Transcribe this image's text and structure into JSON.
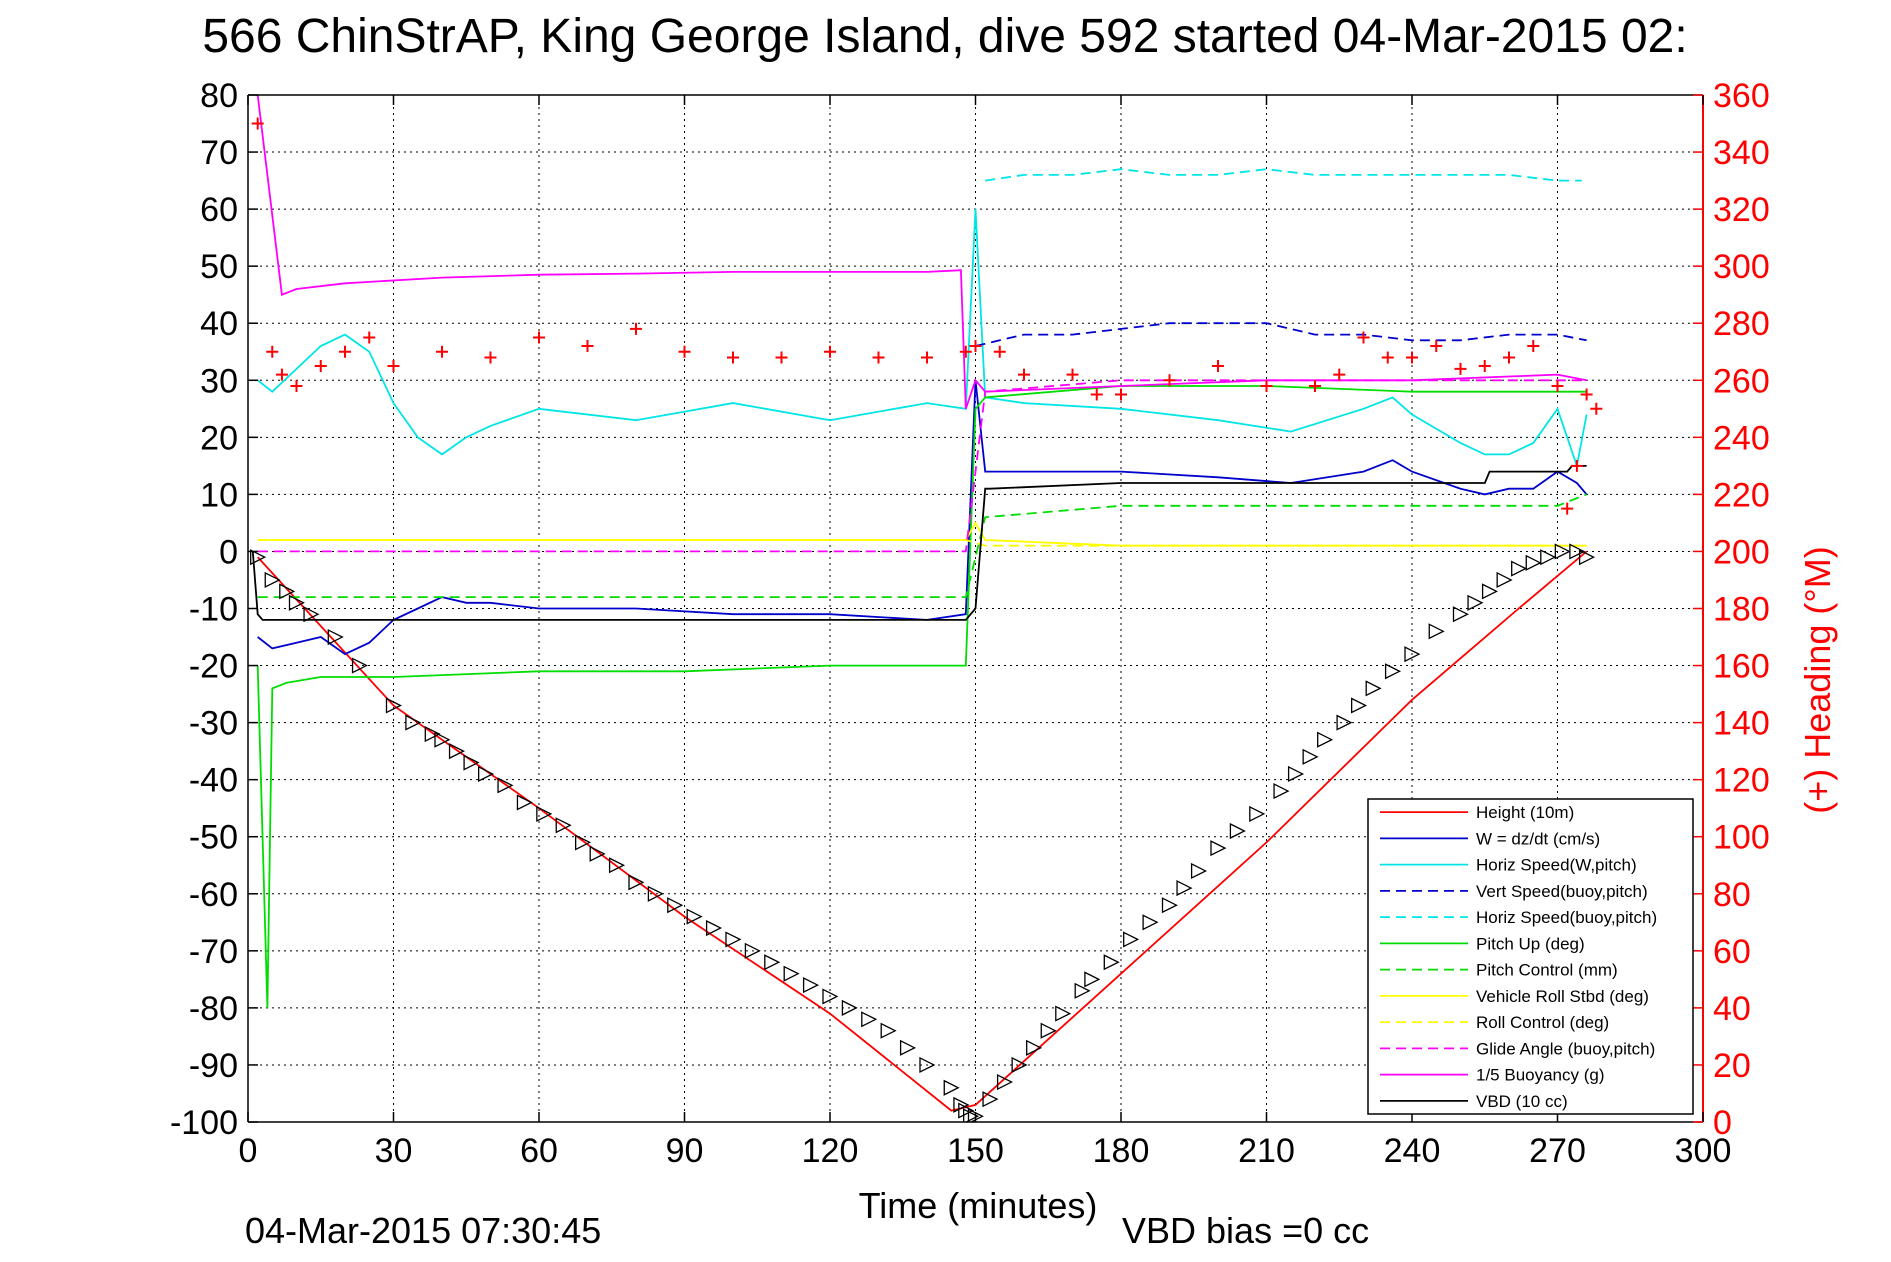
{
  "title": "566 ChinStrAP, King George Island, dive 592 started 04-Mar-2015 02:",
  "footer": {
    "timestamp": "04-Mar-2015 07:30:45",
    "vbd_bias": "VBD bias =0 cc"
  },
  "colors": {
    "height": "#ff0000",
    "w": "#0000cc",
    "horiz": "#00e5e5",
    "pitch": "#00dd00",
    "roll": "#ffff00",
    "glide": "#ff00ff",
    "buoy": "#ff00ff",
    "vbd": "#000000",
    "heading": "#ff0000"
  },
  "chart_data": {
    "type": "line",
    "title": "566 ChinStrAP, King George Island, dive 592 started 04-Mar-2015 02:",
    "xlabel": "Time (minutes)",
    "ylabel": "",
    "y2label": "(+) Heading (°M)",
    "xlim": [
      0,
      300
    ],
    "ylim": [
      -100,
      80
    ],
    "y2lim": [
      0,
      360
    ],
    "grid": true,
    "legend_position": "bottom-right",
    "x_ticks": [
      "0",
      "30",
      "60",
      "90",
      "120",
      "150",
      "180",
      "210",
      "240",
      "270",
      "300"
    ],
    "y_ticks": [
      "80",
      "70",
      "60",
      "50",
      "40",
      "30",
      "20",
      "10",
      "0",
      "-10",
      "-20",
      "-30",
      "-40",
      "-50",
      "-60",
      "-70",
      "-80",
      "-90",
      "-100"
    ],
    "y2_ticks": [
      "360",
      "340",
      "320",
      "300",
      "280",
      "260",
      "240",
      "220",
      "200",
      "180",
      "160",
      "140",
      "120",
      "100",
      "80",
      "60",
      "40",
      "20",
      "0"
    ],
    "series": [
      {
        "name": "Height (10m)",
        "style": "solid",
        "color": "#ff0000",
        "x": [
          2,
          30,
          60,
          90,
          120,
          145,
          150,
          180,
          210,
          240,
          262,
          276
        ],
        "y": [
          -1,
          -27,
          -45,
          -64,
          -81,
          -98,
          -97,
          -74,
          -51,
          -26,
          -10,
          0
        ]
      },
      {
        "name": "W = dz/dt (cm/s)",
        "style": "solid",
        "color": "#0000cc",
        "x": [
          2,
          5,
          10,
          15,
          20,
          25,
          30,
          35,
          40,
          45,
          50,
          60,
          80,
          100,
          120,
          140,
          148,
          150,
          152,
          160,
          180,
          200,
          215,
          230,
          236,
          240,
          250,
          255,
          260,
          265,
          270,
          274,
          276
        ],
        "y": [
          -15,
          -17,
          -16,
          -15,
          -18,
          -16,
          -12,
          -10,
          -8,
          -9,
          -9,
          -10,
          -10,
          -11,
          -11,
          -12,
          -11,
          30,
          14,
          14,
          14,
          13,
          12,
          14,
          16,
          14,
          11,
          10,
          11,
          11,
          14,
          12,
          10
        ]
      },
      {
        "name": "Horiz Speed(W,pitch)",
        "style": "solid",
        "color": "#00e5e5",
        "x": [
          2,
          5,
          10,
          15,
          20,
          25,
          30,
          35,
          40,
          45,
          50,
          60,
          80,
          100,
          120,
          140,
          148,
          150,
          152,
          160,
          180,
          200,
          215,
          230,
          236,
          240,
          250,
          255,
          260,
          265,
          270,
          274,
          276
        ],
        "y": [
          30,
          28,
          32,
          36,
          38,
          35,
          26,
          20,
          17,
          20,
          22,
          25,
          23,
          26,
          23,
          26,
          25,
          60,
          27,
          26,
          25,
          23,
          21,
          25,
          27,
          24,
          19,
          17,
          17,
          19,
          25,
          15,
          24
        ]
      },
      {
        "name": "Vert Speed(buoy,pitch)",
        "style": "dashed",
        "color": "#0000cc",
        "x": [
          150,
          160,
          170,
          180,
          190,
          200,
          210,
          220,
          230,
          240,
          250,
          260,
          270,
          276
        ],
        "y": [
          36,
          38,
          38,
          39,
          40,
          40,
          40,
          38,
          38,
          37,
          37,
          38,
          38,
          37
        ]
      },
      {
        "name": "Horiz Speed(buoy,pitch)",
        "style": "dashed",
        "color": "#00e5e5",
        "x": [
          152,
          160,
          170,
          180,
          190,
          200,
          210,
          220,
          230,
          240,
          250,
          260,
          270,
          275
        ],
        "y": [
          65,
          66,
          66,
          67,
          66,
          66,
          67,
          66,
          66,
          66,
          66,
          66,
          65,
          65
        ]
      },
      {
        "name": "Pitch Up (deg)",
        "style": "solid",
        "color": "#00dd00",
        "x": [
          2,
          4,
          5,
          8,
          15,
          30,
          60,
          90,
          120,
          148,
          150,
          152,
          180,
          210,
          240,
          270,
          276
        ],
        "y": [
          -20,
          -80,
          -24,
          -23,
          -22,
          -22,
          -21,
          -21,
          -20,
          -20,
          25,
          27,
          29,
          29,
          28,
          28,
          28
        ]
      },
      {
        "name": "Pitch Control (mm)",
        "style": "dashed",
        "color": "#00dd00",
        "x": [
          2,
          5,
          10,
          30,
          60,
          90,
          120,
          148,
          152,
          180,
          210,
          240,
          270,
          276
        ],
        "y": [
          -8,
          -8,
          -8,
          -8,
          -8,
          -8,
          -8,
          -8,
          6,
          8,
          8,
          8,
          8,
          10
        ]
      },
      {
        "name": "Vehicle Roll Stbd (deg)",
        "style": "solid",
        "color": "#ffff00",
        "x": [
          2,
          30,
          60,
          90,
          120,
          148,
          150,
          152,
          180,
          210,
          240,
          270,
          276
        ],
        "y": [
          2,
          2,
          2,
          2,
          2,
          2,
          5,
          2,
          1,
          1,
          1,
          1,
          1
        ]
      },
      {
        "name": "Roll Control (deg)",
        "style": "dashed",
        "color": "#ffff00",
        "x": [
          2,
          30,
          60,
          90,
          120,
          148,
          152,
          180,
          210,
          240,
          270,
          276
        ],
        "y": [
          2,
          2,
          2,
          2,
          2,
          2,
          1,
          1,
          1,
          1,
          1,
          1
        ]
      },
      {
        "name": "Glide Angle (buoy,pitch)",
        "style": "dashed",
        "color": "#ff00ff",
        "x": [
          2,
          30,
          60,
          90,
          120,
          148,
          152,
          180,
          210,
          240,
          270,
          276
        ],
        "y": [
          0,
          0,
          0,
          0,
          0,
          0,
          28,
          30,
          30,
          30,
          30,
          30
        ]
      },
      {
        "name": "1/5 Buoyancy (g)",
        "style": "solid",
        "color": "#ff00ff",
        "x": [
          2,
          7,
          10,
          20,
          40,
          60,
          80,
          100,
          120,
          140,
          145,
          147,
          148,
          150,
          152,
          180,
          210,
          240,
          270,
          276
        ],
        "y": [
          80,
          45,
          46,
          47,
          48,
          48.5,
          48.7,
          49,
          49,
          49,
          49.2,
          49.3,
          25,
          30,
          28,
          29,
          30,
          30,
          31,
          30
        ]
      },
      {
        "name": "VBD (10 cc)",
        "style": "solid",
        "color": "#000000",
        "x": [
          1,
          2,
          3,
          148,
          150,
          152,
          153,
          180,
          210,
          240,
          255,
          256,
          272,
          273,
          276
        ],
        "y": [
          0,
          -11,
          -12,
          -12,
          -10,
          11,
          11,
          12,
          12,
          12,
          12,
          14,
          14,
          15,
          15
        ]
      }
    ],
    "heading_series": {
      "name": "(+) Heading",
      "axis": "right",
      "marker": "+",
      "color": "#ff0000",
      "x": [
        2,
        5,
        7,
        10,
        15,
        20,
        25,
        30,
        40,
        50,
        60,
        70,
        80,
        90,
        100,
        110,
        120,
        130,
        140,
        148,
        150,
        155,
        160,
        170,
        175,
        180,
        190,
        200,
        210,
        220,
        225,
        230,
        235,
        240,
        245,
        250,
        255,
        260,
        265,
        270,
        272,
        274,
        276,
        278
      ],
      "y": [
        350,
        270,
        262,
        258,
        265,
        270,
        275,
        265,
        270,
        268,
        275,
        272,
        278,
        270,
        268,
        268,
        270,
        268,
        268,
        270,
        272,
        270,
        262,
        262,
        255,
        255,
        260,
        265,
        258,
        258,
        262,
        275,
        268,
        268,
        272,
        264,
        265,
        268,
        272,
        258,
        215,
        230,
        255,
        250
      ]
    },
    "marker_series": {
      "name": "Height (10m) samples",
      "marker": "triangle",
      "color": "#000000",
      "x": [
        2,
        5,
        8,
        10,
        13,
        18,
        23,
        30,
        34,
        38,
        40,
        43,
        46,
        49,
        53,
        57,
        61,
        65,
        69,
        72,
        76,
        80,
        84,
        88,
        92,
        96,
        100,
        104,
        108,
        112,
        116,
        120,
        124,
        128,
        132,
        136,
        140,
        145,
        147,
        148,
        149,
        150,
        153,
        156,
        159,
        162,
        165,
        168,
        172,
        174,
        178,
        182,
        186,
        190,
        193,
        196,
        200,
        204,
        208,
        213,
        216,
        219,
        222,
        226,
        229,
        232,
        236,
        240,
        245,
        250,
        253,
        256,
        259,
        262,
        265,
        268,
        271,
        274,
        276
      ],
      "y": [
        -1,
        -5,
        -7,
        -9,
        -11,
        -15,
        -20,
        -27,
        -30,
        -32,
        -33,
        -35,
        -37,
        -39,
        -41,
        -44,
        -46,
        -48,
        -51,
        -53,
        -55,
        -58,
        -60,
        -62,
        -64,
        -66,
        -68,
        -70,
        -72,
        -74,
        -76,
        -78,
        -80,
        -82,
        -84,
        -87,
        -90,
        -94,
        -97,
        -98,
        -99,
        -99,
        -96,
        -93,
        -90,
        -87,
        -84,
        -81,
        -77,
        -75,
        -72,
        -68,
        -65,
        -62,
        -59,
        -56,
        -52,
        -49,
        -46,
        -42,
        -39,
        -36,
        -33,
        -30,
        -27,
        -24,
        -21,
        -18,
        -14,
        -11,
        -9,
        -7,
        -5,
        -3,
        -2,
        -1,
        0,
        0,
        -1
      ]
    }
  }
}
